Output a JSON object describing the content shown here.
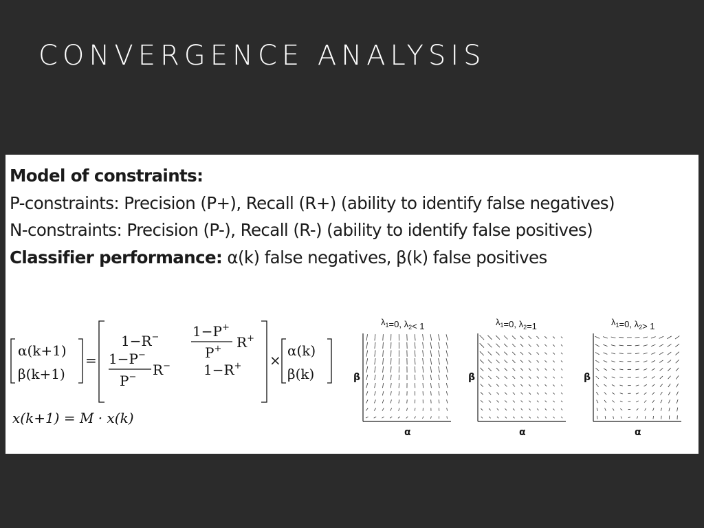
{
  "slide": {
    "title": "CONVERGENCE ANALYSIS"
  },
  "content": {
    "heading": "Model of constraints:",
    "p_constraints": "P-constraints: Precision (P+), Recall (R+) (ability to identify false negatives)",
    "n_constraints": "N-constraints: Precision (P-), Recall (R-) (ability to identify false positives)",
    "classifier_label": "Classifier performance:",
    "classifier_text": " α(k) false negatives, β(k) false positives"
  },
  "equation": {
    "lhs_top": "α(k+1)",
    "lhs_bottom": "β(k+1)",
    "equals": "=",
    "m11": "1−R",
    "m11_sup": "−",
    "m12_num": "1−P",
    "m12_num_sup": "+",
    "m12_den": "P",
    "m12_den_sup": "+",
    "m12_factor": "R",
    "m12_factor_sup": "+",
    "m21_num": "1−P",
    "m21_num_sup": "−",
    "m21_den": "P",
    "m21_den_sup": "−",
    "m21_factor": "R",
    "m21_factor_sup": "−",
    "m22": "1−R",
    "m22_sup": "+",
    "times": "×",
    "rhs_top": "α(k)",
    "rhs_bottom": "β(k)",
    "compact": "x(k+1) = M · x(k)"
  },
  "plots": [
    {
      "lam1": "λ",
      "s1": "1",
      "mid": "=0, ",
      "lam2": "λ",
      "s2": "2",
      "cond": "< 1",
      "ylabel": "β",
      "xlabel": "α"
    },
    {
      "lam1": "λ",
      "s1": "1",
      "mid": "=0, ",
      "lam2": "λ",
      "s2": "2",
      "cond": "=1",
      "ylabel": "β",
      "xlabel": "α"
    },
    {
      "lam1": "λ",
      "s1": "1",
      "mid": "=0, ",
      "lam2": "λ",
      "s2": "2",
      "cond": "> 1",
      "ylabel": "β",
      "xlabel": "α"
    }
  ]
}
